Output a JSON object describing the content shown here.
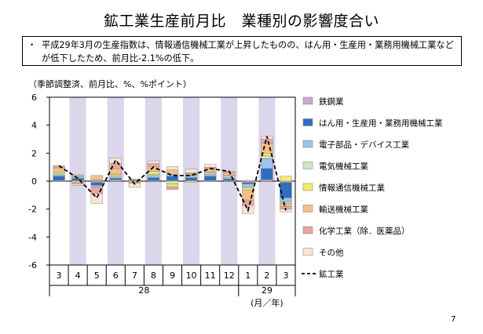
{
  "title": "鉱工業生産前月比　業種別の影響度合い",
  "summary": {
    "bullet": "・",
    "text": "平成29年3月の生産指数は、情報通信機械工業が上昇したものの、はん用・生産用・業務用機械工業などが低下したため、前月比-2.1%の低下。"
  },
  "unit_note": "（季節調整済、前月比、%、%ポイント）",
  "page_number": "7",
  "colors": {
    "shade": "#dcd6ec",
    "axis": "#000000"
  },
  "chart_data": {
    "type": "bar",
    "stacked": true,
    "categories": [
      "3",
      "4",
      "5",
      "6",
      "7",
      "8",
      "9",
      "10",
      "11",
      "12",
      "1",
      "2",
      "3"
    ],
    "year_labels": [
      {
        "label": "28",
        "from": 0,
        "to": 9
      },
      {
        "label": "29",
        "from": 10,
        "to": 12
      }
    ],
    "x_unit_label": "(月／年)",
    "yticks": [
      -6,
      -4,
      -2,
      0,
      2,
      4,
      6
    ],
    "ylim": [
      -6,
      6
    ],
    "shaded_categories": [
      1,
      3,
      5,
      7,
      9,
      11
    ],
    "series": [
      {
        "name": "鉄鋼業",
        "color": "#c8a8d4",
        "values": [
          0.05,
          0.05,
          -0.1,
          0.1,
          0.0,
          0.05,
          0.05,
          0.05,
          0.05,
          0.05,
          -0.1,
          0.1,
          -0.1
        ]
      },
      {
        "name": "はん用・生産用・業務用機械工業",
        "color": "#2f6ebf",
        "values": [
          0.3,
          0.15,
          -0.2,
          0.1,
          0.05,
          0.2,
          0.3,
          0.2,
          0.3,
          0.1,
          -0.1,
          0.8,
          -1.1
        ]
      },
      {
        "name": "電子部品・デバイス工業",
        "color": "#9ec3e8",
        "values": [
          0.1,
          0.1,
          -0.1,
          0.1,
          0.05,
          0.15,
          0.15,
          0.15,
          0.15,
          0.1,
          -0.2,
          0.7,
          -0.3
        ]
      },
      {
        "name": "電気機械工業",
        "color": "#cfe6bf",
        "values": [
          0.1,
          0.05,
          0.05,
          0.1,
          0.05,
          0.1,
          -0.2,
          0.05,
          0.1,
          0.1,
          -0.1,
          0.2,
          -0.1
        ]
      },
      {
        "name": "情報通信機械工業",
        "color": "#f2ea6a",
        "values": [
          0.1,
          -0.1,
          0.05,
          0.1,
          -0.1,
          0.2,
          -0.2,
          -0.1,
          0.05,
          0.05,
          -0.15,
          0.2,
          0.35
        ]
      },
      {
        "name": "輸送機械工業",
        "color": "#f4bf8a",
        "values": [
          0.3,
          0.1,
          0.3,
          0.4,
          0.0,
          0.35,
          0.3,
          0.1,
          0.2,
          0.2,
          -0.7,
          0.7,
          -0.2
        ]
      },
      {
        "name": "化学工業（除．医薬品）",
        "color": "#e8a6a0",
        "values": [
          0.15,
          -0.1,
          -0.5,
          0.35,
          -0.05,
          0.2,
          -0.2,
          0.05,
          0.15,
          0.1,
          -0.4,
          0.3,
          -0.2
        ]
      },
      {
        "name": "その他",
        "color": "#fbe3d1",
        "values": [
          0.0,
          -0.1,
          -0.7,
          0.4,
          -0.3,
          0.2,
          0.25,
          0.25,
          0.2,
          0.0,
          -0.6,
          0.2,
          -0.2
        ]
      }
    ],
    "line": {
      "name": "鉱工業",
      "color": "#000000",
      "values": [
        1.1,
        0.2,
        -1.2,
        1.5,
        -0.2,
        1.0,
        0.4,
        0.4,
        0.9,
        0.7,
        -2.1,
        3.2,
        -2.1
      ]
    }
  }
}
